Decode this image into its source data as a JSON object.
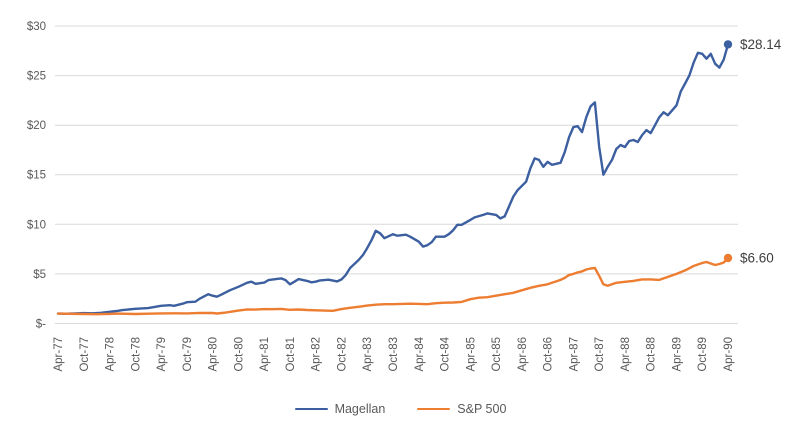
{
  "colors": {
    "background": "#ffffff",
    "gridline": "#d9d9d9",
    "axis_text": "#595959",
    "legend_text": "#595959",
    "value_label_text": "#404040",
    "magellan": "#3c5fa0",
    "sp500": "#ed7d31"
  },
  "legend": {
    "items": [
      {
        "label": "Magellan",
        "swatch_color": "#3c5fa0"
      },
      {
        "label": "S&P 500",
        "swatch_color": "#ed7d31"
      }
    ]
  },
  "chart_data": {
    "type": "line",
    "title": "",
    "grid": "horizontal",
    "legend_position": "bottom",
    "x_axis": {
      "months_per_tick": 6,
      "tick_labels": [
        "Apr-77",
        "Oct-77",
        "Apr-78",
        "Oct-78",
        "Apr-79",
        "Oct-79",
        "Apr-80",
        "Oct-80",
        "Apr-81",
        "Oct-81",
        "Apr-82",
        "Oct-82",
        "Apr-83",
        "Oct-83",
        "Apr-84",
        "Oct-84",
        "Apr-85",
        "Oct-85",
        "Apr-86",
        "Oct-86",
        "Apr-87",
        "Oct-87",
        "Apr-88",
        "Oct-88",
        "Apr-89",
        "Oct-89",
        "Apr-90"
      ]
    },
    "y_axis": {
      "tick_values": [
        0,
        5,
        10,
        15,
        20,
        25,
        30
      ],
      "tick_labels": [
        "$-",
        "$5",
        "$10",
        "$15",
        "$20",
        "$25",
        "$30"
      ],
      "range": [
        0,
        30
      ]
    },
    "series": [
      {
        "name": "Magellan",
        "color": "#3c5fa0",
        "end_label": "$28.14",
        "end_value": 28.14,
        "points": [
          [
            0,
            1.0
          ],
          [
            2,
            0.99
          ],
          [
            4,
            1.02
          ],
          [
            6,
            1.05
          ],
          [
            8,
            1.03
          ],
          [
            10,
            1.08
          ],
          [
            12,
            1.18
          ],
          [
            14,
            1.28
          ],
          [
            15,
            1.35
          ],
          [
            18,
            1.48
          ],
          [
            21,
            1.55
          ],
          [
            24,
            1.78
          ],
          [
            26,
            1.85
          ],
          [
            27,
            1.78
          ],
          [
            29,
            2.0
          ],
          [
            30,
            2.15
          ],
          [
            32,
            2.2
          ],
          [
            33,
            2.5
          ],
          [
            35,
            2.95
          ],
          [
            36,
            2.8
          ],
          [
            37,
            2.7
          ],
          [
            38,
            2.9
          ],
          [
            40,
            3.35
          ],
          [
            42,
            3.7
          ],
          [
            44,
            4.1
          ],
          [
            45,
            4.22
          ],
          [
            46,
            4.0
          ],
          [
            48,
            4.12
          ],
          [
            49,
            4.38
          ],
          [
            51,
            4.5
          ],
          [
            52,
            4.55
          ],
          [
            53,
            4.38
          ],
          [
            54,
            3.95
          ],
          [
            55,
            4.2
          ],
          [
            56,
            4.48
          ],
          [
            58,
            4.3
          ],
          [
            59,
            4.15
          ],
          [
            60,
            4.22
          ],
          [
            61,
            4.35
          ],
          [
            63,
            4.42
          ],
          [
            65,
            4.25
          ],
          [
            66,
            4.45
          ],
          [
            67,
            4.9
          ],
          [
            68,
            5.6
          ],
          [
            70,
            6.4
          ],
          [
            71,
            6.9
          ],
          [
            72,
            7.6
          ],
          [
            73,
            8.4
          ],
          [
            74,
            9.35
          ],
          [
            75,
            9.1
          ],
          [
            76,
            8.6
          ],
          [
            78,
            9.0
          ],
          [
            79,
            8.85
          ],
          [
            81,
            8.95
          ],
          [
            82,
            8.75
          ],
          [
            84,
            8.25
          ],
          [
            85,
            7.75
          ],
          [
            86,
            7.9
          ],
          [
            87,
            8.2
          ],
          [
            88,
            8.75
          ],
          [
            90,
            8.75
          ],
          [
            91,
            9.0
          ],
          [
            92,
            9.4
          ],
          [
            93,
            9.95
          ],
          [
            94,
            9.95
          ],
          [
            96,
            10.45
          ],
          [
            97,
            10.7
          ],
          [
            99,
            10.95
          ],
          [
            100,
            11.1
          ],
          [
            102,
            10.95
          ],
          [
            103,
            10.6
          ],
          [
            104,
            10.8
          ],
          [
            105,
            11.8
          ],
          [
            106,
            12.8
          ],
          [
            107,
            13.45
          ],
          [
            109,
            14.3
          ],
          [
            110,
            15.65
          ],
          [
            111,
            16.65
          ],
          [
            112,
            16.5
          ],
          [
            113,
            15.8
          ],
          [
            114,
            16.3
          ],
          [
            115,
            16.0
          ],
          [
            116,
            16.1
          ],
          [
            117,
            16.2
          ],
          [
            118,
            17.3
          ],
          [
            119,
            18.8
          ],
          [
            120,
            19.8
          ],
          [
            121,
            19.9
          ],
          [
            122,
            19.3
          ],
          [
            123,
            20.8
          ],
          [
            124,
            21.9
          ],
          [
            125,
            22.3
          ],
          [
            126,
            17.8
          ],
          [
            127,
            15.0
          ],
          [
            128,
            15.8
          ],
          [
            129,
            16.5
          ],
          [
            130,
            17.6
          ],
          [
            131,
            18.0
          ],
          [
            132,
            17.8
          ],
          [
            133,
            18.4
          ],
          [
            134,
            18.5
          ],
          [
            135,
            18.3
          ],
          [
            136,
            19.0
          ],
          [
            137,
            19.5
          ],
          [
            138,
            19.2
          ],
          [
            139,
            20.0
          ],
          [
            140,
            20.8
          ],
          [
            141,
            21.3
          ],
          [
            142,
            21.0
          ],
          [
            143,
            21.5
          ],
          [
            144,
            22.0
          ],
          [
            145,
            23.4
          ],
          [
            146,
            24.2
          ],
          [
            147,
            25.0
          ],
          [
            148,
            26.3
          ],
          [
            149,
            27.3
          ],
          [
            150,
            27.2
          ],
          [
            151,
            26.7
          ],
          [
            152,
            27.2
          ],
          [
            153,
            26.2
          ],
          [
            154,
            25.8
          ],
          [
            155,
            26.6
          ],
          [
            156,
            28.14
          ]
        ]
      },
      {
        "name": "S&P 500",
        "color": "#ed7d31",
        "end_label": "$6.60",
        "end_value": 6.6,
        "points": [
          [
            0,
            1.0
          ],
          [
            3,
            0.98
          ],
          [
            6,
            0.96
          ],
          [
            9,
            0.94
          ],
          [
            12,
            0.97
          ],
          [
            14,
            1.0
          ],
          [
            16,
            0.98
          ],
          [
            18,
            0.96
          ],
          [
            21,
            0.99
          ],
          [
            24,
            1.02
          ],
          [
            27,
            1.03
          ],
          [
            30,
            1.02
          ],
          [
            33,
            1.07
          ],
          [
            36,
            1.06
          ],
          [
            37,
            1.01
          ],
          [
            39,
            1.1
          ],
          [
            42,
            1.3
          ],
          [
            44,
            1.42
          ],
          [
            46,
            1.4
          ],
          [
            48,
            1.45
          ],
          [
            50,
            1.44
          ],
          [
            52,
            1.47
          ],
          [
            54,
            1.38
          ],
          [
            56,
            1.41
          ],
          [
            58,
            1.36
          ],
          [
            60,
            1.33
          ],
          [
            62,
            1.3
          ],
          [
            64,
            1.28
          ],
          [
            66,
            1.45
          ],
          [
            68,
            1.58
          ],
          [
            70,
            1.68
          ],
          [
            72,
            1.8
          ],
          [
            74,
            1.9
          ],
          [
            76,
            1.95
          ],
          [
            78,
            1.95
          ],
          [
            80,
            1.98
          ],
          [
            82,
            2.0
          ],
          [
            84,
            1.98
          ],
          [
            86,
            1.95
          ],
          [
            88,
            2.05
          ],
          [
            90,
            2.1
          ],
          [
            92,
            2.12
          ],
          [
            94,
            2.18
          ],
          [
            96,
            2.45
          ],
          [
            98,
            2.6
          ],
          [
            100,
            2.65
          ],
          [
            102,
            2.8
          ],
          [
            104,
            2.95
          ],
          [
            106,
            3.1
          ],
          [
            108,
            3.35
          ],
          [
            110,
            3.6
          ],
          [
            112,
            3.8
          ],
          [
            114,
            3.95
          ],
          [
            115,
            4.1
          ],
          [
            116,
            4.25
          ],
          [
            117,
            4.4
          ],
          [
            118,
            4.6
          ],
          [
            119,
            4.9
          ],
          [
            120,
            5.0
          ],
          [
            121,
            5.15
          ],
          [
            122,
            5.25
          ],
          [
            123,
            5.45
          ],
          [
            124,
            5.55
          ],
          [
            125,
            5.6
          ],
          [
            126,
            4.8
          ],
          [
            127,
            3.95
          ],
          [
            128,
            3.8
          ],
          [
            129,
            3.95
          ],
          [
            130,
            4.1
          ],
          [
            132,
            4.2
          ],
          [
            134,
            4.3
          ],
          [
            136,
            4.45
          ],
          [
            138,
            4.45
          ],
          [
            140,
            4.4
          ],
          [
            142,
            4.7
          ],
          [
            144,
            5.0
          ],
          [
            146,
            5.35
          ],
          [
            148,
            5.8
          ],
          [
            150,
            6.1
          ],
          [
            151,
            6.2
          ],
          [
            152,
            6.05
          ],
          [
            153,
            5.9
          ],
          [
            154,
            6.0
          ],
          [
            155,
            6.15
          ],
          [
            156,
            6.6
          ]
        ]
      }
    ]
  }
}
